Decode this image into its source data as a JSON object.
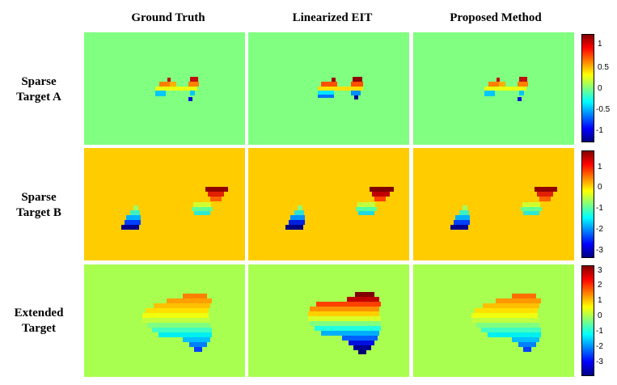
{
  "column_titles": [
    "Ground Truth",
    "Linearized EIT",
    "Proposed Method"
  ],
  "rows": [
    {
      "label": [
        "Sparse",
        "Target A"
      ],
      "background": "#80ff80",
      "colorbar_ticks": [
        "1",
        "0.5",
        "0",
        "-0.5",
        "-1"
      ]
    },
    {
      "label": [
        "Sparse",
        "Target B"
      ],
      "background": "#ffcc00",
      "colorbar_ticks": [
        "1",
        "0",
        "-1",
        "-2",
        "-3"
      ]
    },
    {
      "label": [
        "Extended",
        "Target"
      ],
      "background": "#a8ff50",
      "colorbar_ticks": [
        "3",
        "2",
        "1",
        "0",
        "-1",
        "-2",
        "-3"
      ]
    }
  ],
  "colormap": "jet"
}
